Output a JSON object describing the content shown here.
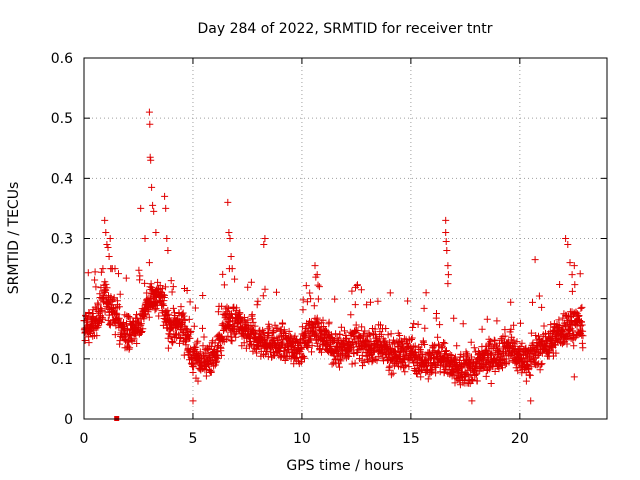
{
  "chart_data": {
    "type": "scatter",
    "title": "Day 284 of 2022, SRMTID for receiver tntr",
    "xlabel": "GPS time / hours",
    "ylabel": "SRMTID / TECUs",
    "xlim": [
      0,
      24
    ],
    "ylim": [
      0,
      0.6
    ],
    "xticks": [
      0,
      5,
      10,
      15,
      20
    ],
    "xtick_labels": [
      "0",
      "5",
      "10",
      "15",
      "20"
    ],
    "yticks": [
      0,
      0.1,
      0.2,
      0.3,
      0.4,
      0.5,
      0.6
    ],
    "ytick_labels": [
      "0",
      "0.1",
      "0.2",
      "0.3",
      "0.4",
      "0.5",
      "0.6"
    ],
    "grid": true,
    "marker": "plus",
    "color": "#e00000",
    "series": [
      {
        "name": "SRMTID",
        "profile_baseline": [
          [
            0.0,
            0.15
          ],
          [
            0.5,
            0.16
          ],
          [
            1.0,
            0.2
          ],
          [
            1.4,
            0.17
          ],
          [
            2.0,
            0.14
          ],
          [
            2.5,
            0.15
          ],
          [
            3.0,
            0.2
          ],
          [
            3.5,
            0.2
          ],
          [
            4.0,
            0.15
          ],
          [
            4.5,
            0.16
          ],
          [
            5.0,
            0.1
          ],
          [
            5.5,
            0.1
          ],
          [
            6.0,
            0.1
          ],
          [
            6.5,
            0.16
          ],
          [
            7.0,
            0.16
          ],
          [
            7.5,
            0.14
          ],
          [
            8.0,
            0.13
          ],
          [
            8.5,
            0.13
          ],
          [
            9.0,
            0.12
          ],
          [
            9.5,
            0.12
          ],
          [
            10.0,
            0.12
          ],
          [
            10.5,
            0.15
          ],
          [
            11.0,
            0.14
          ],
          [
            11.5,
            0.11
          ],
          [
            12.0,
            0.12
          ],
          [
            12.5,
            0.13
          ],
          [
            13.0,
            0.12
          ],
          [
            13.5,
            0.12
          ],
          [
            14.0,
            0.11
          ],
          [
            14.5,
            0.11
          ],
          [
            15.0,
            0.11
          ],
          [
            15.5,
            0.1
          ],
          [
            16.0,
            0.1
          ],
          [
            16.5,
            0.1
          ],
          [
            17.0,
            0.08
          ],
          [
            17.5,
            0.08
          ],
          [
            18.0,
            0.09
          ],
          [
            18.5,
            0.1
          ],
          [
            19.0,
            0.11
          ],
          [
            19.5,
            0.12
          ],
          [
            20.0,
            0.1
          ],
          [
            20.5,
            0.1
          ],
          [
            21.0,
            0.12
          ],
          [
            21.5,
            0.13
          ],
          [
            22.0,
            0.15
          ],
          [
            22.5,
            0.16
          ],
          [
            22.9,
            0.15
          ]
        ],
        "spikes": [
          [
            0.95,
            0.33
          ],
          [
            1.0,
            0.31
          ],
          [
            1.05,
            0.29
          ],
          [
            1.1,
            0.285
          ],
          [
            1.15,
            0.27
          ],
          [
            1.2,
            0.3
          ],
          [
            1.3,
            0.25
          ],
          [
            2.6,
            0.35
          ],
          [
            2.8,
            0.3
          ],
          [
            3.0,
            0.51
          ],
          [
            3.02,
            0.49
          ],
          [
            3.04,
            0.435
          ],
          [
            3.06,
            0.43
          ],
          [
            3.1,
            0.385
          ],
          [
            3.15,
            0.355
          ],
          [
            3.2,
            0.345
          ],
          [
            3.0,
            0.26
          ],
          [
            3.3,
            0.31
          ],
          [
            3.7,
            0.37
          ],
          [
            3.75,
            0.35
          ],
          [
            3.8,
            0.3
          ],
          [
            3.85,
            0.28
          ],
          [
            4.0,
            0.23
          ],
          [
            4.1,
            0.22
          ],
          [
            6.6,
            0.36
          ],
          [
            6.65,
            0.31
          ],
          [
            6.7,
            0.3
          ],
          [
            6.75,
            0.27
          ],
          [
            6.8,
            0.25
          ],
          [
            8.3,
            0.3
          ],
          [
            8.25,
            0.29
          ],
          [
            10.6,
            0.255
          ],
          [
            10.7,
            0.24
          ],
          [
            10.8,
            0.22
          ],
          [
            16.6,
            0.33
          ],
          [
            16.6,
            0.31
          ],
          [
            16.62,
            0.295
          ],
          [
            16.65,
            0.28
          ],
          [
            16.7,
            0.255
          ],
          [
            16.72,
            0.24
          ],
          [
            16.7,
            0.225
          ],
          [
            20.7,
            0.265
          ],
          [
            22.1,
            0.3
          ],
          [
            22.2,
            0.29
          ],
          [
            22.3,
            0.26
          ],
          [
            22.5,
            0.255
          ],
          [
            22.4,
            0.24
          ]
        ],
        "extremes": [
          [
            1.5,
            0.0
          ],
          [
            5.0,
            0.03
          ],
          [
            17.8,
            0.03
          ],
          [
            20.5,
            0.03
          ],
          [
            22.5,
            0.07
          ]
        ]
      }
    ]
  }
}
